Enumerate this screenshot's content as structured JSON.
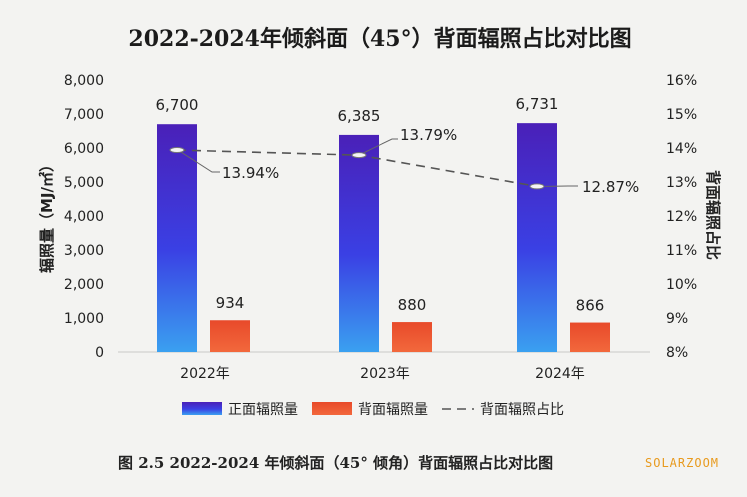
{
  "chart_data": {
    "type": "bar",
    "title": "2022-2024年倾斜面（45°）背面辐照占比对比图",
    "categories": [
      "2022年",
      "2023年",
      "2024年"
    ],
    "series": [
      {
        "name": "正面辐照量",
        "axis": "left",
        "values": [
          6700,
          6385,
          6731
        ],
        "labels": [
          "6,700",
          "6,385",
          "6,731"
        ],
        "color": "#3b2fd6"
      },
      {
        "name": "背面辐照量",
        "axis": "left",
        "values": [
          934,
          880,
          866
        ],
        "labels": [
          "934",
          "880",
          "866"
        ],
        "color": "#e4482a"
      },
      {
        "name": "背面辐照占比",
        "axis": "right",
        "type": "line",
        "values": [
          13.94,
          13.79,
          12.87
        ],
        "labels": [
          "13.94%",
          "13.79%",
          "12.87%"
        ],
        "color": "#6a6a6a"
      }
    ],
    "ylabel": "辐照量（MJ/㎡）",
    "y2label": "背面辐照占比",
    "ylim": [
      0,
      8000
    ],
    "y2lim": [
      8,
      16
    ],
    "yticks": [
      "0",
      "1,000",
      "2,000",
      "3,000",
      "4,000",
      "5,000",
      "6,000",
      "7,000",
      "8,000"
    ],
    "y2ticks": [
      "8%",
      "9%",
      "10%",
      "11%",
      "12%",
      "13%",
      "14%",
      "15%",
      "16%"
    ],
    "legend_position": "bottom"
  },
  "caption": "图 2.5 2022-2024 年倾斜面（45° 倾角）背面辐照占比对比图",
  "watermark": "SOLARZOOM"
}
